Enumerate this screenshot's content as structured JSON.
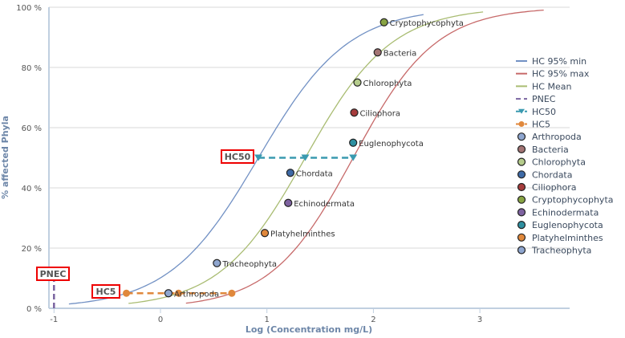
{
  "chart_data": {
    "type": "scatter",
    "xlabel": "Log (Concentration mg/L)",
    "ylabel": "% affected Phyla",
    "xlim": [
      -1.05,
      3.85
    ],
    "ylim": [
      0,
      100
    ],
    "x_ticks": [
      -1,
      0,
      1,
      2,
      3
    ],
    "y_ticks": [
      0,
      20,
      40,
      60,
      80,
      100
    ],
    "y_tick_suffix": " %",
    "grid": "horizontal",
    "legend_position": "right",
    "curves": [
      {
        "name": "HC 95% min",
        "color": "#7291c4",
        "center": 0.92,
        "scale": 0.421,
        "x_range": [
          -0.86,
          2.49
        ]
      },
      {
        "name": "HC 95% max",
        "color": "#c76a6a",
        "center": 1.81,
        "scale": 0.387,
        "x_range": [
          0.24,
          3.6
        ]
      },
      {
        "name": "HC Mean",
        "color": "#a9bc72",
        "center": 1.36,
        "scale": 0.404,
        "x_range": [
          -0.3,
          3.05
        ]
      }
    ],
    "pnec": {
      "name": "PNEC",
      "label": "PNEC",
      "x": -1,
      "y": [
        0,
        10
      ],
      "color": "#7a64a0"
    },
    "hc50": {
      "name": "HC50",
      "label": "HC50",
      "x": [
        0.92,
        1.36,
        1.81
      ],
      "y": 50,
      "color": "#3a9ab0"
    },
    "hc5": {
      "name": "HC5",
      "label": "HC5",
      "x": [
        -0.32,
        0.17,
        0.67
      ],
      "y": 5,
      "color": "#e0883c"
    },
    "points": [
      {
        "name": "Arthropoda",
        "x": 0.075,
        "y": 5,
        "color": "#8fa6cf"
      },
      {
        "name": "Bacteria",
        "x": 2.04,
        "y": 85,
        "color": "#a37474"
      },
      {
        "name": "Chlorophyta",
        "x": 1.85,
        "y": 75,
        "color": "#b5cc8c"
      },
      {
        "name": "Chordata",
        "x": 1.22,
        "y": 45,
        "color": "#3e6aa6"
      },
      {
        "name": "Ciliophora",
        "x": 1.82,
        "y": 65,
        "color": "#a63c3c"
      },
      {
        "name": "Cryptophycophyta",
        "x": 2.1,
        "y": 95,
        "color": "#88a444"
      },
      {
        "name": "Echinodermata",
        "x": 1.2,
        "y": 35,
        "color": "#7e62a0"
      },
      {
        "name": "Euglenophycota",
        "x": 1.81,
        "y": 55,
        "color": "#2e8fa0"
      },
      {
        "name": "Platyhelminthes",
        "x": 0.98,
        "y": 25,
        "color": "#e0883c"
      },
      {
        "name": "Tracheophyta",
        "x": 0.53,
        "y": 15,
        "color": "#8fa6cf"
      }
    ]
  }
}
